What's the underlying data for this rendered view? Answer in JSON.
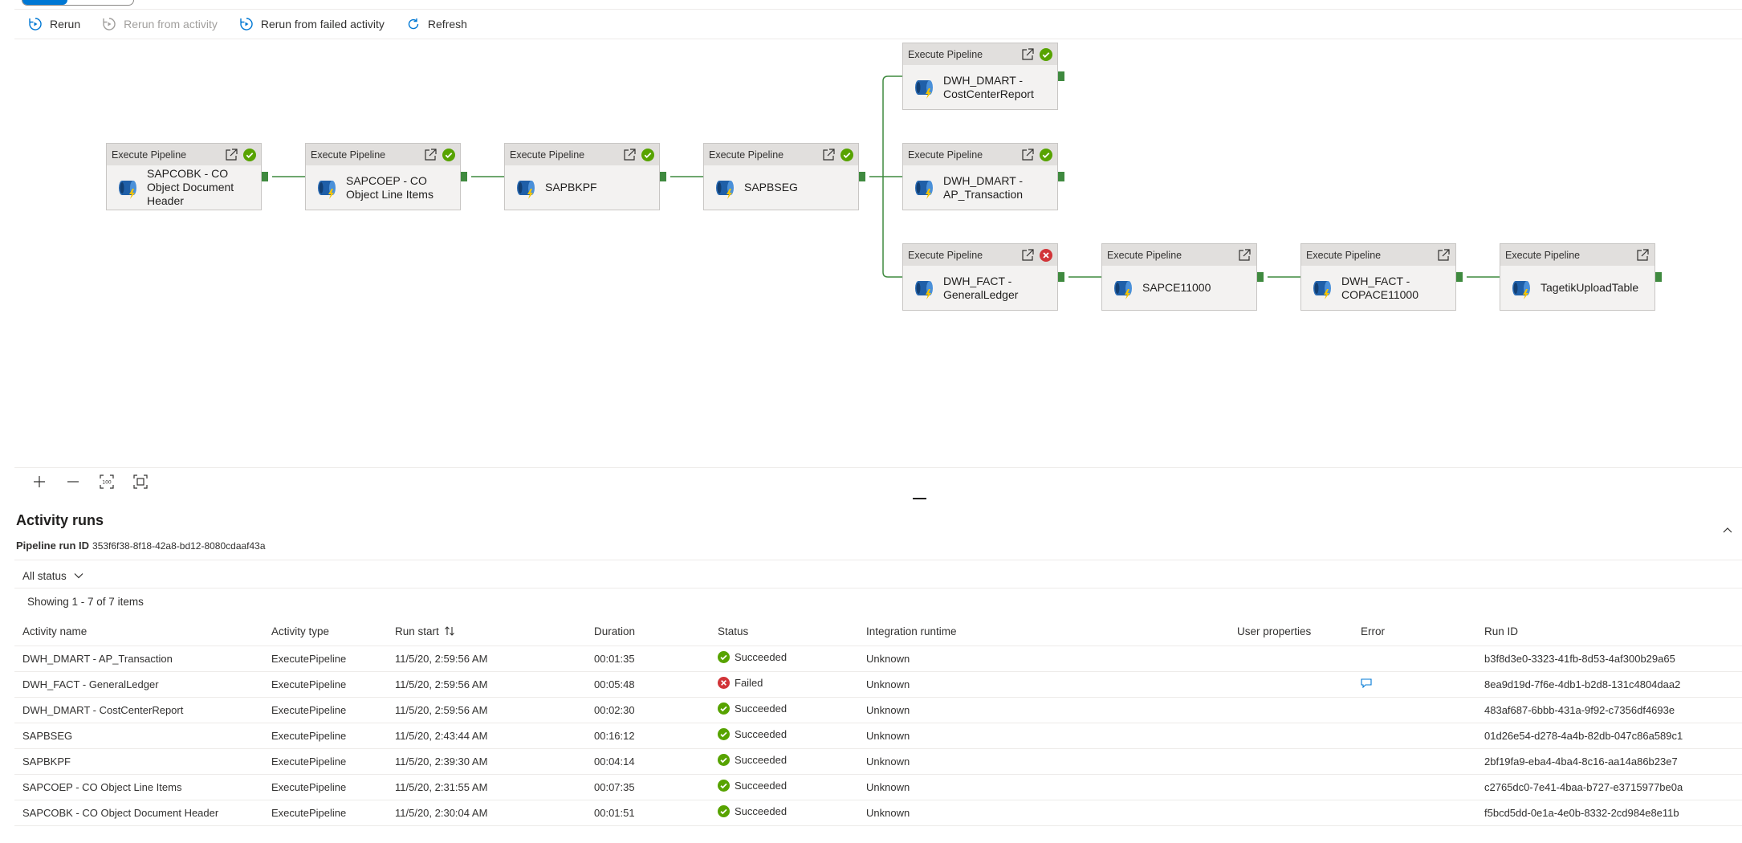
{
  "toolbar": {
    "rerun": "Rerun",
    "rerun_from_activity": "Rerun from activity",
    "rerun_from_failed": "Rerun from failed activity",
    "refresh": "Refresh"
  },
  "nodes": [
    {
      "header": "Execute Pipeline",
      "name": "SAPCOBK - CO Object Document Header",
      "status": "succeeded"
    },
    {
      "header": "Execute Pipeline",
      "name": "SAPCOEP - CO Object Line Items",
      "status": "succeeded"
    },
    {
      "header": "Execute Pipeline",
      "name": "SAPBKPF",
      "status": "succeeded"
    },
    {
      "header": "Execute Pipeline",
      "name": "SAPBSEG",
      "status": "succeeded"
    },
    {
      "header": "Execute Pipeline",
      "name": "DWH_DMART - CostCenterReport",
      "status": "succeeded"
    },
    {
      "header": "Execute Pipeline",
      "name": "DWH_DMART - AP_Transaction",
      "status": "succeeded"
    },
    {
      "header": "Execute Pipeline",
      "name": "DWH_FACT - GeneralLedger",
      "status": "failed"
    },
    {
      "header": "Execute Pipeline",
      "name": "SAPCE11000",
      "status": "none"
    },
    {
      "header": "Execute Pipeline",
      "name": "DWH_FACT - COPACE11000",
      "status": "none"
    },
    {
      "header": "Execute Pipeline",
      "name": "TagetikUploadTable",
      "status": "none"
    }
  ],
  "activity_runs": {
    "title": "Activity runs",
    "pipeline_run_id_label": "Pipeline run ID",
    "pipeline_run_id": "353f6f38-8f18-42a8-bd12-8080cdaaf43a",
    "status_filter": "All status",
    "showing": "Showing 1 - 7 of 7 items",
    "columns": [
      "Activity name",
      "Activity type",
      "Run start",
      "Duration",
      "Status",
      "Integration runtime",
      "User properties",
      "Error",
      "Run ID"
    ],
    "rows": [
      {
        "name": "DWH_DMART - AP_Transaction",
        "type": "ExecutePipeline",
        "start": "11/5/20, 2:59:56 AM",
        "duration": "00:01:35",
        "status": "Succeeded",
        "runtime": "Unknown",
        "has_error": false,
        "run_id": "b3f8d3e0-3323-41fb-8d53-4af300b29a65"
      },
      {
        "name": "DWH_FACT - GeneralLedger",
        "type": "ExecutePipeline",
        "start": "11/5/20, 2:59:56 AM",
        "duration": "00:05:48",
        "status": "Failed",
        "runtime": "Unknown",
        "has_error": true,
        "run_id": "8ea9d19d-7f6e-4db1-b2d8-131c4804daa2"
      },
      {
        "name": "DWH_DMART - CostCenterReport",
        "type": "ExecutePipeline",
        "start": "11/5/20, 2:59:56 AM",
        "duration": "00:02:30",
        "status": "Succeeded",
        "runtime": "Unknown",
        "has_error": false,
        "run_id": "483af687-6bbb-431a-9f92-c7356df4693e"
      },
      {
        "name": "SAPBSEG",
        "type": "ExecutePipeline",
        "start": "11/5/20, 2:43:44 AM",
        "duration": "00:16:12",
        "status": "Succeeded",
        "runtime": "Unknown",
        "has_error": false,
        "run_id": "01d26e54-d278-4a4b-82db-047c86a589c1"
      },
      {
        "name": "SAPBKPF",
        "type": "ExecutePipeline",
        "start": "11/5/20, 2:39:30 AM",
        "duration": "00:04:14",
        "status": "Succeeded",
        "runtime": "Unknown",
        "has_error": false,
        "run_id": "2bf19fa9-eba4-4ba4-8c16-aa14a86b23e7"
      },
      {
        "name": "SAPCOEP - CO Object Line Items",
        "type": "ExecutePipeline",
        "start": "11/5/20, 2:31:55 AM",
        "duration": "00:07:35",
        "status": "Succeeded",
        "runtime": "Unknown",
        "has_error": false,
        "run_id": "c2765dc0-7e41-4baa-b727-e3715977be0a"
      },
      {
        "name": "SAPCOBK - CO Object Document Header",
        "type": "ExecutePipeline",
        "start": "11/5/20, 2:30:04 AM",
        "duration": "00:01:51",
        "status": "Succeeded",
        "runtime": "Unknown",
        "has_error": false,
        "run_id": "f5bcd5dd-0e1a-4e0b-8332-2cd984e8e11b"
      }
    ]
  },
  "colors": {
    "success": "#57a300",
    "failed": "#d13438",
    "edge": "#3f8a3f",
    "accent": "#0078d4"
  }
}
